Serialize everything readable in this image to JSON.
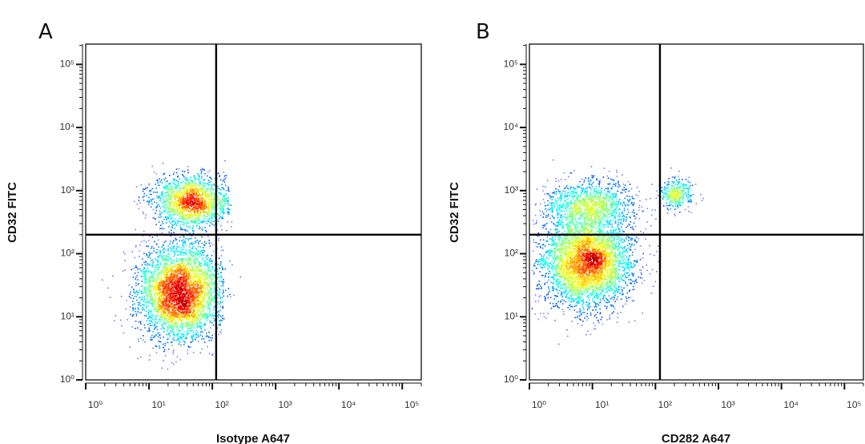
{
  "chart_data": [
    {
      "type": "scatter",
      "panel_label": "A",
      "xlabel": "Isotype A647",
      "ylabel": "CD32 FITC",
      "x_scale": "log",
      "y_scale": "log",
      "xlim": [
        1,
        200000
      ],
      "ylim": [
        1,
        210000
      ],
      "x_tick_values": [
        1,
        10,
        100,
        1000,
        10000,
        100000
      ],
      "x_tick_labels": [
        "10⁰",
        "10¹",
        "10²",
        "10³",
        "10⁴",
        "10⁵"
      ],
      "y_tick_values": [
        1,
        10,
        100,
        1000,
        10000,
        100000
      ],
      "y_tick_labels": [
        "10⁰",
        "10¹",
        "10²",
        "10³",
        "10⁴",
        "10⁵"
      ],
      "quadrant_gate": {
        "x": 115,
        "y": 200
      },
      "colormap": "jet (density)",
      "grid": false,
      "populations": [
        {
          "center_x": 30,
          "center_y": 25,
          "spread_x_decades": 0.33,
          "spread_y_decades": 0.38,
          "fraction": 0.7,
          "x_max": 150
        },
        {
          "center_x": 45,
          "center_y": 700,
          "spread_x_decades": 0.3,
          "spread_y_decades": 0.2,
          "fraction": 0.3,
          "x_max": 180
        }
      ]
    },
    {
      "type": "scatter",
      "panel_label": "B",
      "xlabel": "CD282 A647",
      "ylabel": "CD32 FITC",
      "x_scale": "log",
      "y_scale": "log",
      "xlim": [
        1,
        200000
      ],
      "ylim": [
        1,
        210000
      ],
      "x_tick_values": [
        1,
        10,
        100,
        1000,
        10000,
        100000
      ],
      "x_tick_labels": [
        "10⁰",
        "10¹",
        "10²",
        "10³",
        "10⁴",
        "10⁵"
      ],
      "y_tick_values": [
        1,
        10,
        100,
        1000,
        10000,
        100000
      ],
      "y_tick_labels": [
        "10⁰",
        "10¹",
        "10²",
        "10³",
        "10⁴",
        "10⁵"
      ],
      "quadrant_gate": {
        "x": 118,
        "y": 200
      },
      "colormap": "jet (density)",
      "grid": false,
      "populations": [
        {
          "center_x": 8,
          "center_y": 75,
          "spread_x_decades": 0.36,
          "spread_y_decades": 0.36,
          "fraction": 0.72,
          "x_max": 120
        },
        {
          "center_x": 9,
          "center_y": 600,
          "spread_x_decades": 0.38,
          "spread_y_decades": 0.2,
          "fraction": 0.22,
          "x_max": 120
        },
        {
          "center_x": 210,
          "center_y": 900,
          "spread_x_decades": 0.12,
          "spread_y_decades": 0.13,
          "fraction": 0.06,
          "x_max": 600
        }
      ]
    }
  ]
}
